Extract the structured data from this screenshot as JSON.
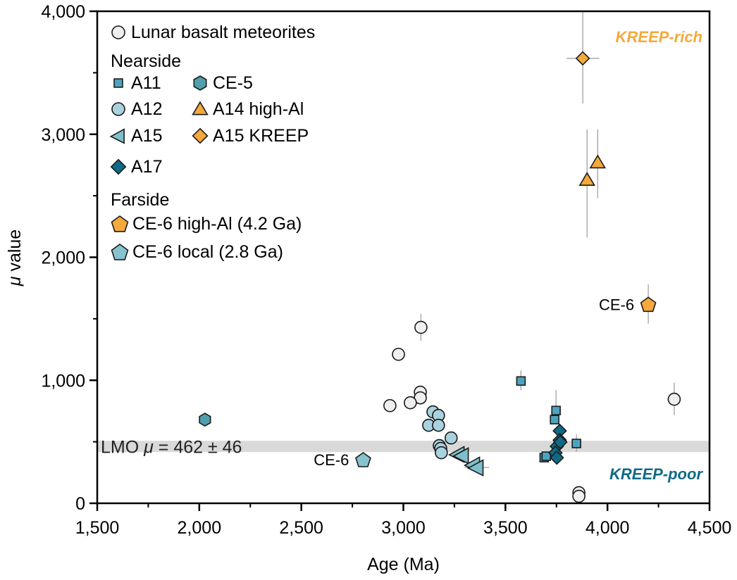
{
  "chart_data": {
    "type": "scatter",
    "title": "",
    "xlabel": "Age (Ma)",
    "ylabel_symbol": "μ",
    "ylabel_text": " value",
    "xlim": [
      1500,
      4500
    ],
    "ylim": [
      0,
      4000
    ],
    "x_ticks": [
      1500,
      2000,
      2500,
      3000,
      3500,
      4000,
      4500
    ],
    "x_tick_labels": [
      "1,500",
      "2,000",
      "2,500",
      "3,000",
      "3,500",
      "4,000",
      "4,500"
    ],
    "x_minor_ticks": [
      1750,
      2250,
      2750,
      3250,
      3750,
      4250
    ],
    "y_ticks": [
      0,
      1000,
      2000,
      3000,
      4000
    ],
    "y_tick_labels": [
      "0",
      "1,000",
      "2,000",
      "3,000",
      "4,000"
    ],
    "y_minor_ticks": [
      500,
      1500,
      2500,
      3500
    ],
    "grid": false,
    "legend_position": "top-left",
    "reference_band": {
      "label_prefix": "LMO ",
      "label_symbol": "μ",
      "label_suffix": " = 462 ± 46",
      "center": 462,
      "halfwidth": 46,
      "color": "#d9d9d9"
    },
    "annotations": [
      {
        "text": "KREEP-rich",
        "position": "top-right",
        "color": "#f5a93a"
      },
      {
        "text": "KREEP-poor",
        "position": "bottom-right",
        "color": "#0f6a85"
      },
      {
        "text": "CE-6",
        "target": "CE-6 high-Al (4.2 Ga)",
        "x": 4200,
        "y": 1617
      },
      {
        "text": "CE-6",
        "target": "CE-6 local (2.8 Ga)",
        "x": 2803,
        "y": 354
      }
    ],
    "legend": {
      "groups": [
        {
          "header": "",
          "items": [
            {
              "series": "Lunar basalt meteorites"
            }
          ]
        },
        {
          "header": "Nearside",
          "items": [
            {
              "series": "A11"
            },
            {
              "series": "CE-5"
            },
            {
              "series": "A12"
            },
            {
              "series": "A14 high-Al"
            },
            {
              "series": "A15"
            },
            {
              "series": "A15 KREEP"
            },
            {
              "series": "A17"
            }
          ]
        },
        {
          "header": "Farside",
          "items": [
            {
              "series": "CE-6 high-Al (4.2 Ga)"
            },
            {
              "series": "CE-6 local (2.8 Ga)"
            }
          ]
        }
      ]
    },
    "series": [
      {
        "name": "Lunar basalt meteorites",
        "marker": "circle",
        "color": "#efefef",
        "points": [
          {
            "x": 3086,
            "y": 1430,
            "yerr": [
              1320,
              1540
            ]
          },
          {
            "x": 2976,
            "y": 1211
          },
          {
            "x": 3083,
            "y": 903
          },
          {
            "x": 3083,
            "y": 857
          },
          {
            "x": 2934,
            "y": 794
          },
          {
            "x": 3034,
            "y": 817
          },
          {
            "x": 4327,
            "y": 846,
            "yerr": [
              717,
              980
            ]
          },
          {
            "x": 3860,
            "y": 86
          },
          {
            "x": 3860,
            "y": 57
          }
        ]
      },
      {
        "name": "A11",
        "marker": "square",
        "color": "#4da3c0",
        "points": [
          {
            "x": 3576,
            "y": 994,
            "yerr": [
              920,
              1080
            ]
          },
          {
            "x": 3748,
            "y": 754,
            "yerr": [
              640,
              920
            ]
          },
          {
            "x": 3741,
            "y": 680
          },
          {
            "x": 3848,
            "y": 486,
            "yerr": [
              420,
              560
            ]
          },
          {
            "x": 3690,
            "y": 371
          },
          {
            "x": 3700,
            "y": 383
          }
        ]
      },
      {
        "name": "A12",
        "marker": "circle",
        "color": "#a9d2df",
        "points": [
          {
            "x": 3145,
            "y": 743
          },
          {
            "x": 3172,
            "y": 714
          },
          {
            "x": 3124,
            "y": 634
          },
          {
            "x": 3172,
            "y": 634
          },
          {
            "x": 3234,
            "y": 531
          },
          {
            "x": 3176,
            "y": 469
          },
          {
            "x": 3183,
            "y": 446
          },
          {
            "x": 3186,
            "y": 411
          }
        ]
      },
      {
        "name": "A15",
        "marker": "triangle-left",
        "color": "#7fbfcb",
        "points": [
          {
            "x": 3266,
            "y": 400
          },
          {
            "x": 3287,
            "y": 389
          },
          {
            "x": 3342,
            "y": 314
          },
          {
            "x": 3359,
            "y": 291,
            "xerr": [
              3300,
              3420
            ]
          }
        ]
      },
      {
        "name": "A17",
        "marker": "diamond",
        "color": "#0f6a85",
        "points": [
          {
            "x": 3766,
            "y": 589
          },
          {
            "x": 3766,
            "y": 514
          },
          {
            "x": 3752,
            "y": 463
          },
          {
            "x": 3769,
            "y": 497
          },
          {
            "x": 3745,
            "y": 411
          },
          {
            "x": 3752,
            "y": 371
          }
        ]
      },
      {
        "name": "CE-5",
        "marker": "hexagon",
        "color": "#4f9fac",
        "points": [
          {
            "x": 2028,
            "y": 680
          }
        ]
      },
      {
        "name": "A14 high-Al",
        "marker": "triangle-up",
        "color": "#f5a93a",
        "points": [
          {
            "x": 3900,
            "y": 2629,
            "yerr": [
              2160,
              3040
            ]
          },
          {
            "x": 3952,
            "y": 2771,
            "yerr": [
              2480,
              3040
            ]
          }
        ]
      },
      {
        "name": "A15 KREEP",
        "marker": "diamond",
        "color": "#f5a93a",
        "points": [
          {
            "x": 3879,
            "y": 3617,
            "yerr": [
              3250,
              4000
            ],
            "xerr": [
              3800,
              3960
            ]
          }
        ]
      },
      {
        "name": "CE-6 high-Al (4.2 Ga)",
        "marker": "pentagon",
        "color": "#f5a93a",
        "points": [
          {
            "x": 4200,
            "y": 1617,
            "yerr": [
              1460,
              1780
            ]
          }
        ]
      },
      {
        "name": "CE-6 local (2.8 Ga)",
        "marker": "pentagon",
        "color": "#86c3cf",
        "points": [
          {
            "x": 2803,
            "y": 354
          }
        ]
      }
    ]
  }
}
